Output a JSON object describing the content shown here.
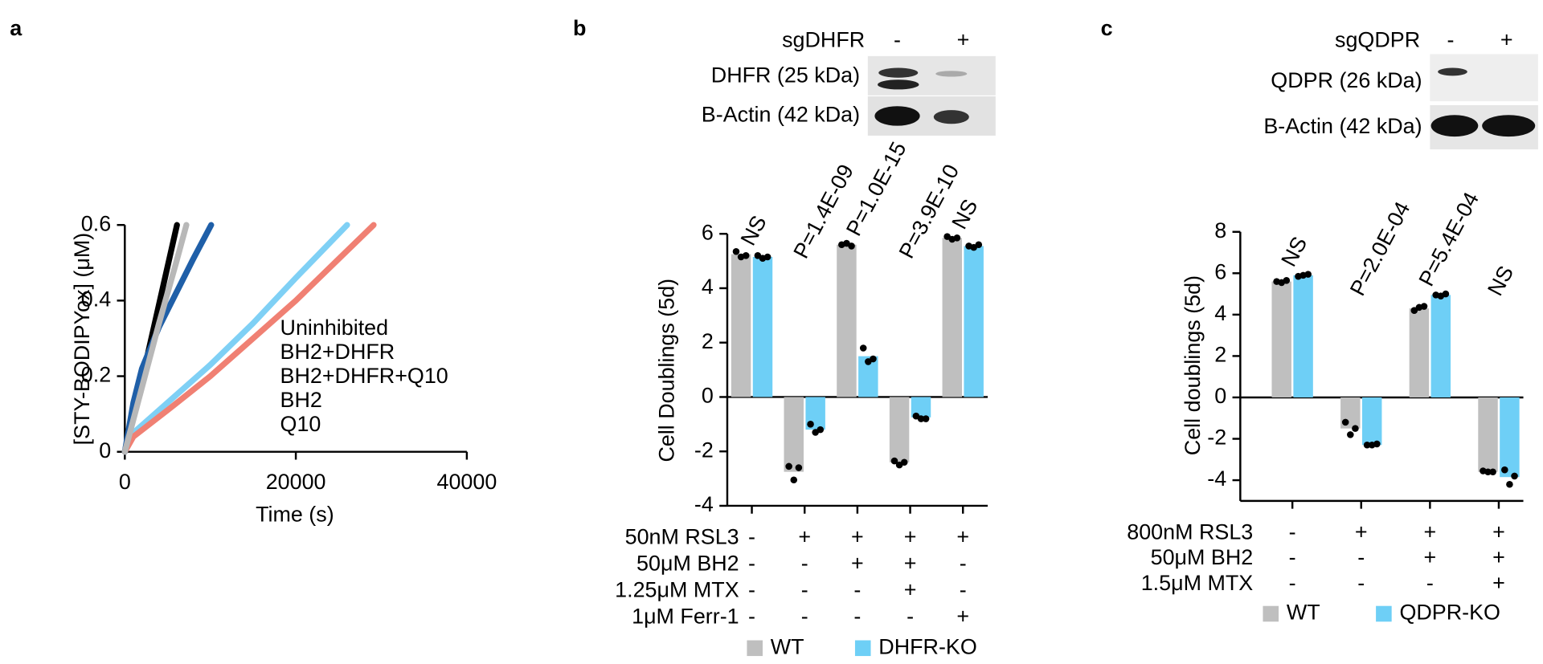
{
  "chart_data": [
    {
      "type": "line",
      "panel_label": "a",
      "y_label": "[STY-BODIPYox] (μM)",
      "x_label": "Time (s)",
      "xlim": [
        0,
        40000
      ],
      "xticks": [
        0,
        20000,
        40000
      ],
      "ylim": [
        0,
        0.6
      ],
      "yticks": [
        0,
        0.2,
        0.4,
        0.6
      ],
      "series": [
        {
          "name": "Uninhibited",
          "color": "#000000",
          "x": [
            0,
            1000,
            2000,
            3000,
            4000,
            5000,
            6100
          ],
          "values": [
            0,
            0.09,
            0.19,
            0.29,
            0.39,
            0.49,
            0.6
          ]
        },
        {
          "name": "BH2+DHFR",
          "color": "#7fd0f5",
          "x": [
            0,
            1000,
            5000,
            10000,
            15000,
            20000,
            26000
          ],
          "values": [
            0,
            0.05,
            0.13,
            0.23,
            0.34,
            0.46,
            0.6
          ]
        },
        {
          "name": "BH2+DHFR+Q10",
          "color": "#f08073",
          "x": [
            0,
            1000,
            5000,
            10000,
            15000,
            20000,
            25000,
            29100
          ],
          "values": [
            0,
            0.04,
            0.11,
            0.2,
            0.3,
            0.4,
            0.51,
            0.6
          ]
        },
        {
          "name": "BH2",
          "color": "#1f5fa8",
          "x": [
            0,
            1000,
            2000,
            4000,
            6000,
            8000,
            10100
          ],
          "values": [
            0,
            0.13,
            0.22,
            0.33,
            0.42,
            0.51,
            0.6
          ]
        },
        {
          "name": "Q10",
          "color": "#b8b8b8",
          "x": [
            0,
            2000,
            4000,
            6000,
            7200
          ],
          "values": [
            0,
            0.17,
            0.34,
            0.5,
            0.6
          ]
        }
      ]
    },
    {
      "type": "bar",
      "panel_label": "b",
      "blot": {
        "header": "sgDHFR",
        "lanes": [
          "-",
          "+"
        ],
        "rows": [
          "DHFR (25 kDa)",
          "B-Actin (42 kDa)"
        ]
      },
      "y_label": "Cell Doublings (5d)",
      "ylim": [
        -4,
        6
      ],
      "yticks": [
        -4,
        -2,
        0,
        2,
        4,
        6
      ],
      "categories": [
        null,
        null,
        null,
        null,
        null
      ],
      "annotations": [
        "NS",
        "P=1.4E-09",
        "P=1.0E-15",
        "P=3.9E-10",
        "NS"
      ],
      "treatments": [
        {
          "label": "50nM RSL3",
          "signs": [
            "-",
            "+",
            "+",
            "+",
            "+"
          ]
        },
        {
          "label": "50μM BH2",
          "signs": [
            "-",
            "-",
            "+",
            "+",
            "-"
          ]
        },
        {
          "label": "1.25μM MTX",
          "signs": [
            "-",
            "-",
            "-",
            "+",
            "-"
          ]
        },
        {
          "label": "1μM Ferr-1",
          "signs": [
            "-",
            "-",
            "-",
            "-",
            "+"
          ]
        }
      ],
      "series": [
        {
          "name": "WT",
          "color": "#bfbfbf",
          "values": [
            5.25,
            -2.75,
            5.6,
            -2.4,
            5.85
          ],
          "points": [
            [
              5.35,
              5.15,
              5.2
            ],
            [
              -2.55,
              -3.05,
              -2.6
            ],
            [
              5.6,
              5.65,
              5.55
            ],
            [
              -2.35,
              -2.5,
              -2.4
            ],
            [
              5.9,
              5.8,
              5.85
            ]
          ]
        },
        {
          "name": "DHFR-KO",
          "color": "#6ecff6",
          "values": [
            5.15,
            -1.2,
            1.5,
            -0.75,
            5.55
          ],
          "points": [
            [
              5.2,
              5.1,
              5.15
            ],
            [
              -1.0,
              -1.3,
              -1.2
            ],
            [
              1.8,
              1.3,
              1.4
            ],
            [
              -0.7,
              -0.8,
              -0.8
            ],
            [
              5.55,
              5.5,
              5.6
            ]
          ]
        }
      ]
    },
    {
      "type": "bar",
      "panel_label": "c",
      "blot": {
        "header": "sgQDPR",
        "lanes": [
          "-",
          "+"
        ],
        "rows": [
          "QDPR (26 kDa)",
          "B-Actin (42 kDa)"
        ]
      },
      "y_label": "Cell doublings (5d)",
      "ylim": [
        -5,
        8
      ],
      "yticks": [
        -4,
        -2,
        0,
        2,
        4,
        6,
        8
      ],
      "categories": [
        null,
        null,
        null,
        null
      ],
      "annotations": [
        "NS",
        "P=2.0E-04",
        "P=5.4E-04",
        "NS"
      ],
      "treatments": [
        {
          "label": "800nM RSL3",
          "signs": [
            "-",
            "+",
            "+",
            "+"
          ]
        },
        {
          "label": "50μM BH2",
          "signs": [
            "-",
            "-",
            "+",
            "+"
          ]
        },
        {
          "label": "1.5μM MTX",
          "signs": [
            "-",
            "-",
            "-",
            "+"
          ]
        }
      ],
      "series": [
        {
          "name": "WT",
          "color": "#bfbfbf",
          "values": [
            5.6,
            -1.5,
            4.3,
            -3.6
          ],
          "points": [
            [
              5.6,
              5.55,
              5.65
            ],
            [
              -1.2,
              -1.8,
              -1.5
            ],
            [
              4.2,
              4.35,
              4.4
            ],
            [
              -3.55,
              -3.6,
              -3.6
            ]
          ]
        },
        {
          "name": "QDPR-KO",
          "color": "#6ecff6",
          "values": [
            5.9,
            -2.3,
            4.95,
            -3.85
          ],
          "points": [
            [
              5.85,
              5.9,
              5.95
            ],
            [
              -2.3,
              -2.3,
              -2.25
            ],
            [
              4.95,
              4.9,
              5.0
            ],
            [
              -3.5,
              -4.2,
              -3.8
            ]
          ]
        }
      ]
    }
  ]
}
